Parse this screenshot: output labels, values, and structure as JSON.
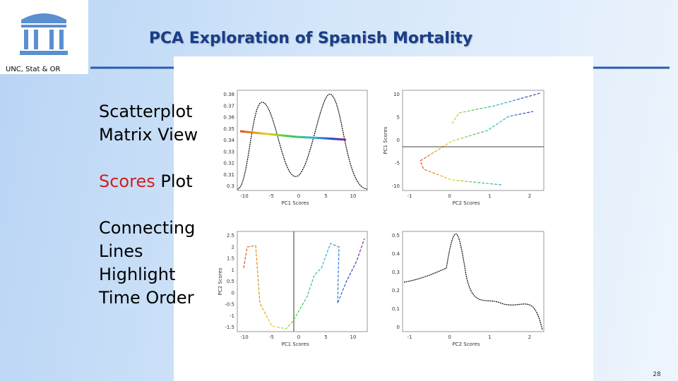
{
  "header": {
    "title": "PCA Exploration of Spanish Mortality",
    "logo_caption": "UNC, Stat & OR"
  },
  "bullets": [
    {
      "lines": [
        "Scatterplot",
        "Matrix View"
      ]
    },
    {
      "highlight": "Scores",
      "text": "Plot"
    },
    {
      "lines": [
        "Connecting",
        "Lines",
        "Highlight",
        "Time Order"
      ]
    }
  ],
  "figure": {
    "panels": [
      {
        "xlabel": "PC1 Scores",
        "xticks": [
          "-10",
          "-5",
          "0",
          "5",
          "10"
        ],
        "yticks": [
          "0.38",
          "0.37",
          "0.36",
          "0.35",
          "0.34",
          "0.33",
          "0.32",
          "0.31",
          "0.3"
        ]
      },
      {
        "xlabel": "PC2 Scores",
        "ylabel": "PC1 Scores",
        "xticks": [
          "-1",
          "0",
          "1",
          "2"
        ],
        "yticks": [
          "10",
          "5",
          "0",
          "-5",
          "-10"
        ]
      },
      {
        "xlabel": "PC1 Scores",
        "ylabel": "PC2 Scores",
        "xticks": [
          "-10",
          "-5",
          "0",
          "5",
          "10"
        ],
        "yticks": [
          "2.5",
          "2",
          "1.5",
          "1",
          "0.5",
          "0",
          "-0.5",
          "-1",
          "-1.5"
        ]
      },
      {
        "xlabel": "PC2 Scores",
        "xticks": [
          "-1",
          "0",
          "1",
          "2"
        ],
        "yticks": [
          "0.5",
          "0.4",
          "0.3",
          "0.2",
          "0.1",
          "0"
        ]
      }
    ]
  },
  "page_number": "28"
}
